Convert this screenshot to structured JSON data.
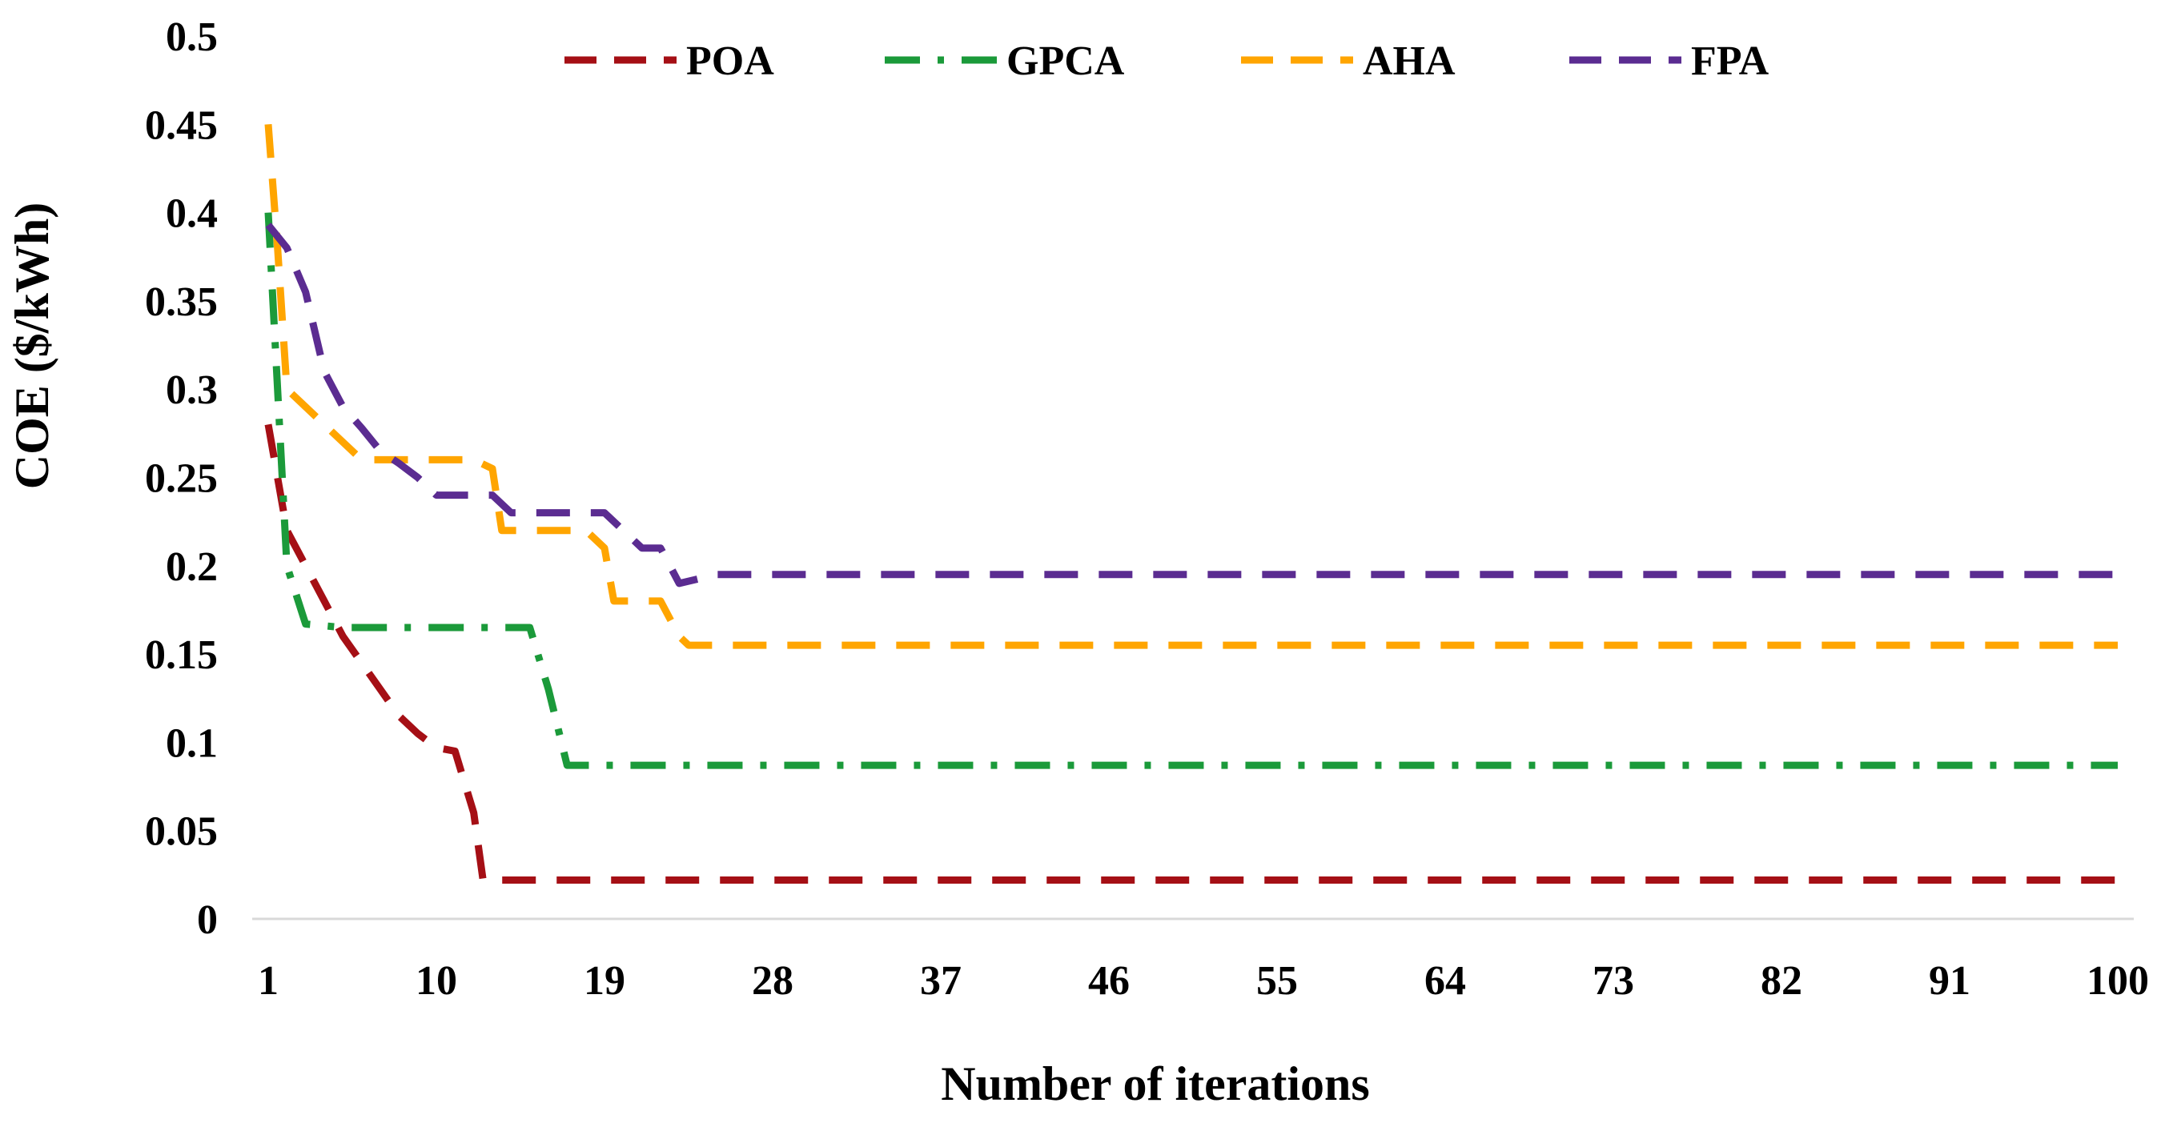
{
  "chart_data": {
    "type": "line",
    "title": "",
    "xlabel": "Number of iterations",
    "ylabel": "COE ($/kWh)",
    "xlim": [
      1,
      100
    ],
    "ylim": [
      0,
      0.5
    ],
    "x_ticks": [
      "1",
      "10",
      "19",
      "28",
      "37",
      "46",
      "55",
      "64",
      "73",
      "82",
      "91",
      "100"
    ],
    "y_ticks": [
      "0",
      "0.05",
      "0.1",
      "0.15",
      "0.2",
      "0.25",
      "0.3",
      "0.35",
      "0.4",
      "0.45",
      "0.5"
    ],
    "grid": false,
    "legend_position": "top",
    "series": [
      {
        "name": "POA",
        "color": "#a50f15",
        "dash": "dash",
        "points": [
          [
            1,
            0.28
          ],
          [
            2,
            0.22
          ],
          [
            3,
            0.2
          ],
          [
            4,
            0.18
          ],
          [
            5,
            0.16
          ],
          [
            6,
            0.145
          ],
          [
            7,
            0.13
          ],
          [
            8,
            0.115
          ],
          [
            9,
            0.105
          ],
          [
            10,
            0.097
          ],
          [
            11,
            0.095
          ],
          [
            12,
            0.06
          ],
          [
            12.5,
            0.022
          ],
          [
            100,
            0.022
          ]
        ]
      },
      {
        "name": "GPCA",
        "color": "#1b9a3a",
        "dash": "dashdot",
        "points": [
          [
            1,
            0.4
          ],
          [
            1.5,
            0.3
          ],
          [
            2,
            0.2
          ],
          [
            3,
            0.167
          ],
          [
            5,
            0.165
          ],
          [
            15,
            0.165
          ],
          [
            16,
            0.13
          ],
          [
            17,
            0.087
          ],
          [
            100,
            0.087
          ]
        ]
      },
      {
        "name": "AHA",
        "color": "#ffa500",
        "dash": "dash",
        "points": [
          [
            1,
            0.45
          ],
          [
            1.5,
            0.38
          ],
          [
            2,
            0.3
          ],
          [
            3,
            0.29
          ],
          [
            5,
            0.27
          ],
          [
            6,
            0.26
          ],
          [
            12,
            0.26
          ],
          [
            13,
            0.255
          ],
          [
            13.5,
            0.22
          ],
          [
            18,
            0.22
          ],
          [
            19,
            0.21
          ],
          [
            19.5,
            0.18
          ],
          [
            22,
            0.18
          ],
          [
            23,
            0.16
          ],
          [
            23.5,
            0.155
          ],
          [
            100,
            0.155
          ]
        ]
      },
      {
        "name": "FPA",
        "color": "#5b2c91",
        "dash": "dash",
        "points": [
          [
            1,
            0.393
          ],
          [
            2,
            0.38
          ],
          [
            3,
            0.355
          ],
          [
            4,
            0.31
          ],
          [
            5,
            0.29
          ],
          [
            6,
            0.278
          ],
          [
            7,
            0.265
          ],
          [
            8,
            0.258
          ],
          [
            9,
            0.25
          ],
          [
            10,
            0.24
          ],
          [
            13,
            0.24
          ],
          [
            14,
            0.23
          ],
          [
            19,
            0.23
          ],
          [
            21,
            0.21
          ],
          [
            22,
            0.21
          ],
          [
            23,
            0.19
          ],
          [
            25,
            0.195
          ],
          [
            100,
            0.195
          ]
        ]
      }
    ]
  }
}
